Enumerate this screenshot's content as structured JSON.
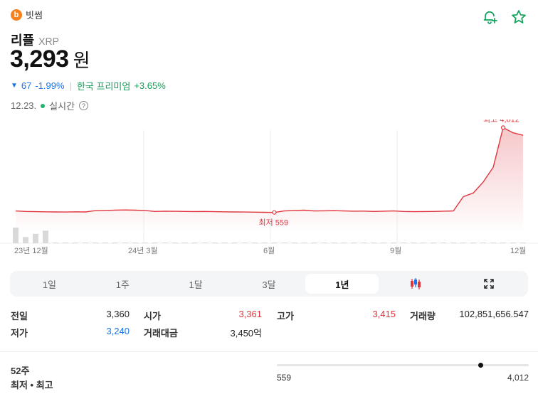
{
  "exchange": {
    "logo_glyph": "b",
    "name": "빗썸",
    "logo_color": "#f58220"
  },
  "coin": {
    "name": "리플",
    "ticker": "XRP"
  },
  "price": {
    "value": "3,293",
    "unit": "원"
  },
  "change": {
    "arrow": "▼",
    "amount": "67",
    "percent": "-1.99%",
    "premium_label": "한국 프리미엄",
    "premium_value": "+3.65%"
  },
  "date": {
    "value": "12.23.",
    "live_label": "실시간",
    "help_glyph": "?"
  },
  "icons": {
    "alert": "bell-plus-icon",
    "favorite": "star-icon"
  },
  "colors": {
    "down": "#1a73e8",
    "up": "#e0363f",
    "premium": "#11a05a",
    "line": "#e0363f"
  },
  "chart_data": {
    "type": "line",
    "x_labels": [
      "23년 12월",
      "24년 3월",
      "6월",
      "9월",
      "12월"
    ],
    "x": [
      0,
      1,
      2,
      3,
      4,
      5,
      6,
      7,
      8,
      9,
      10,
      11,
      12,
      13,
      14,
      15,
      16,
      17,
      18,
      19,
      20,
      21,
      22,
      23,
      24,
      25,
      26,
      27,
      28,
      29,
      30,
      31,
      32,
      33,
      34,
      35,
      36,
      37,
      38,
      39,
      40,
      41,
      42,
      43,
      44,
      45,
      46,
      47,
      48,
      49,
      50,
      51
    ],
    "values": [
      620,
      600,
      590,
      585,
      578,
      575,
      585,
      580,
      630,
      640,
      655,
      660,
      650,
      640,
      600,
      610,
      605,
      600,
      595,
      600,
      590,
      585,
      580,
      575,
      570,
      565,
      559,
      620,
      640,
      650,
      620,
      625,
      630,
      620,
      610,
      615,
      600,
      610,
      620,
      600,
      590,
      595,
      600,
      610,
      620,
      1200,
      1350,
      1800,
      2400,
      4012,
      3800,
      3700
    ],
    "max": {
      "label": "최고 4,012",
      "value": 4012
    },
    "min": {
      "label": "최저 559",
      "value": 559
    },
    "volume": [
      5,
      2,
      3,
      4,
      0,
      0,
      0,
      0,
      0,
      0,
      0,
      0,
      0,
      0,
      0,
      0,
      0,
      0,
      0,
      0,
      0,
      0,
      0,
      0,
      0,
      0,
      0,
      0,
      0,
      0,
      0,
      0,
      0,
      0,
      0,
      0,
      0,
      0,
      0,
      0,
      0,
      0,
      0,
      0,
      0,
      0,
      0,
      0,
      0,
      0,
      0,
      0
    ]
  },
  "periods": [
    {
      "label": "1일",
      "active": false
    },
    {
      "label": "1주",
      "active": false
    },
    {
      "label": "1달",
      "active": false
    },
    {
      "label": "3달",
      "active": false
    },
    {
      "label": "1년",
      "active": true
    }
  ],
  "tools": {
    "candle": "candlestick-icon",
    "expand": "expand-icon"
  },
  "stats": {
    "prev_close_label": "전일",
    "prev_close": "3,360",
    "open_label": "시가",
    "open": "3,361",
    "high_label": "고가",
    "high": "3,415",
    "volume_label": "거래량",
    "volume": "102,851,656.547",
    "low_label": "저가",
    "low": "3,240",
    "turnover_label": "거래대금",
    "turnover": "3,450억"
  },
  "range52": {
    "label_line1": "52주",
    "label_line2": "최저 • 최고",
    "min": "559",
    "max": "4,012",
    "current_fraction": 0.808
  }
}
